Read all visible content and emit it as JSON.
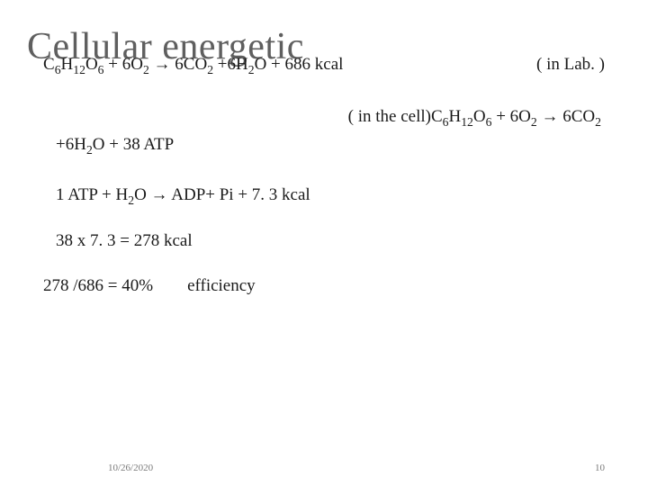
{
  "colors": {
    "background": "#ffffff",
    "title": "#5f5f5f",
    "body": "#1a1a1a",
    "footer": "#7a7a7a"
  },
  "typography": {
    "title_fontsize": 42,
    "body_fontsize": 19,
    "footer_fontsize": 11,
    "font_family": "Georgia, Times New Roman, serif"
  },
  "title": "Cellular energetic",
  "eq_lab": {
    "lhs": "C",
    "sub1": "6",
    "h": "H",
    "sub2": "12",
    "o": "O",
    "sub3": "6",
    "plus": " + 6O",
    "sub4": "2",
    "arrow": "  →   6CO",
    "sub5": "2",
    "plus2": " +6H",
    "sub6": "2",
    "tail": "O + 686 kcal",
    "note": "( in Lab. )"
  },
  "eq_cell": {
    "prefix": "( in the cell)C",
    "s1": "6",
    "h": "H",
    "s2": "12",
    "o": "O",
    "s3": "6",
    "plus": " + 6O",
    "s4": "2",
    "arrow": "  → 6CO",
    "s5": "2",
    "line2a": "+6H",
    "s6": "2",
    "line2b": "O + 38 ATP"
  },
  "atp": {
    "pre": "1   ATP + H",
    "s1": "2",
    "post": "O  →   ADP+ Pi + 7. 3 kcal"
  },
  "calc1": "38 x 7. 3  = 278 kcal",
  "calc2": "278 /686 = 40%        efficiency",
  "footer": {
    "date": "10/26/2020",
    "page": "10"
  }
}
